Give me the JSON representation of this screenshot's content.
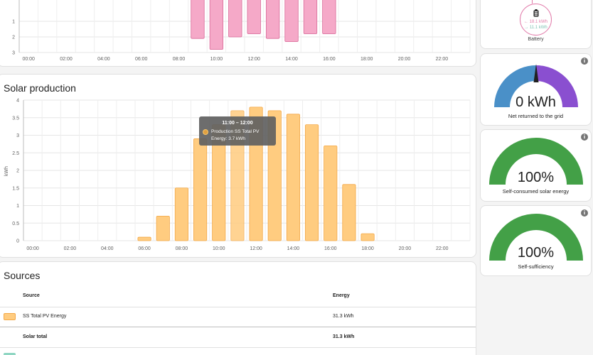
{
  "usage_chart": {
    "y_ticks": [
      "1",
      "2",
      "3"
    ],
    "x_ticks": [
      "00:00",
      "02:00",
      "04:00",
      "06:00",
      "08:00",
      "10:00",
      "12:00",
      "14:00",
      "16:00",
      "18:00",
      "20:00",
      "22:00"
    ]
  },
  "battery": {
    "label": "Battery",
    "in_value": "← 18.1 kWh",
    "out_value": "→ 11.1 kWh"
  },
  "solar": {
    "title": "Solar production",
    "y_axis_label": "kWh",
    "tooltip": {
      "time": "11:00 – 12:00",
      "series": "Production SS Total PV",
      "value": "Energy: 3.7 kWh"
    }
  },
  "gauges": [
    {
      "value": "0 kWh",
      "label": "Net returned to the grid"
    },
    {
      "value": "100%",
      "label": "Self-consumed solar energy"
    },
    {
      "value": "100%",
      "label": "Self-sufficiency"
    }
  ],
  "sources": {
    "title": "Sources",
    "col_source": "Source",
    "col_energy": "Energy",
    "rows": [
      {
        "name": "SS Total PV Energy",
        "energy": "31.3 kWh"
      }
    ],
    "total_label": "Solar total",
    "total_value": "31.3 kWh"
  },
  "colors": {
    "solar_fill": "#ffcc80",
    "solar_stroke": "#f3a847",
    "usage_fill": "#f5a9c8",
    "usage_stroke": "#d96a99",
    "gauge_grid_blue": "#4a90c8",
    "gauge_grid_purple": "#8a4fd0",
    "gauge_green": "#43a047",
    "source_teal": "#8fd6c2"
  },
  "chart_data": [
    {
      "type": "bar",
      "title": "",
      "xlabel": "",
      "ylabel": "",
      "ylim": [
        0,
        3
      ],
      "categories": [
        "09:00",
        "10:00",
        "11:00",
        "12:00",
        "13:00",
        "14:00",
        "15:00",
        "16:00"
      ],
      "values": [
        2.1,
        2.8,
        2.0,
        1.8,
        2.1,
        2.3,
        1.8,
        1.8
      ]
    },
    {
      "type": "bar",
      "title": "Solar production",
      "xlabel": "",
      "ylabel": "kWh",
      "ylim": [
        0,
        4
      ],
      "y_ticks": [
        "0",
        "0.5",
        "1",
        "1.5",
        "2",
        "2.5",
        "3",
        "3.5",
        "4"
      ],
      "x_ticks": [
        "00:00",
        "02:00",
        "04:00",
        "06:00",
        "08:00",
        "10:00",
        "12:00",
        "14:00",
        "16:00",
        "18:00",
        "20:00",
        "22:00"
      ],
      "categories": [
        "06:00",
        "07:00",
        "08:00",
        "09:00",
        "10:00",
        "11:00",
        "12:00",
        "13:00",
        "14:00",
        "15:00",
        "16:00",
        "17:00",
        "18:00"
      ],
      "values": [
        0.1,
        0.7,
        1.5,
        2.9,
        3.3,
        3.7,
        3.8,
        3.7,
        3.6,
        3.3,
        2.7,
        1.6,
        0.2
      ],
      "series": [
        {
          "name": "Production SS Total PV",
          "values": [
            0.1,
            0.7,
            1.5,
            2.9,
            3.3,
            3.7,
            3.8,
            3.7,
            3.6,
            3.3,
            2.7,
            1.6,
            0.2
          ]
        }
      ]
    }
  ]
}
